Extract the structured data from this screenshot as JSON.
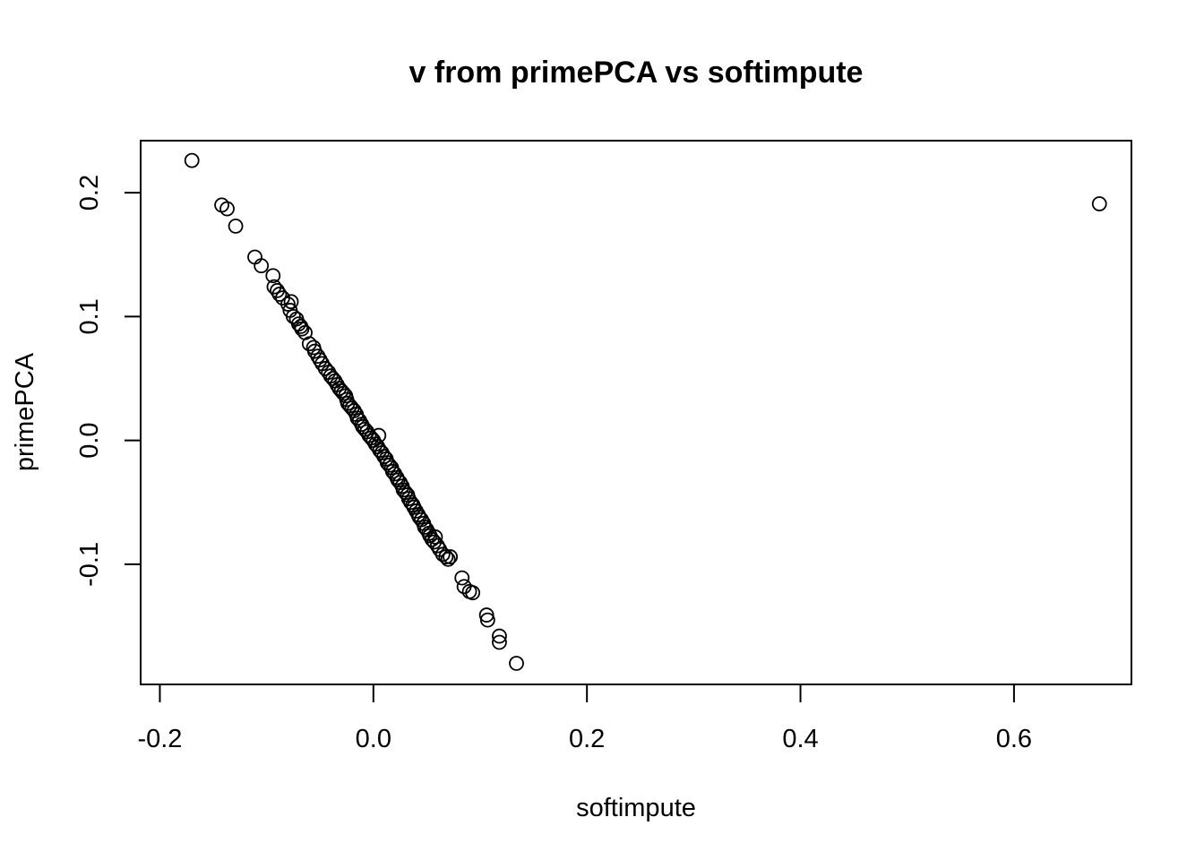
{
  "chart_data": {
    "type": "scatter",
    "title": "v from primePCA vs softimpute",
    "xlabel": "softimpute",
    "ylabel": "primePCA",
    "xlim": [
      -0.2,
      0.7
    ],
    "ylim": [
      -0.19,
      0.24
    ],
    "x_ticks": [
      -0.2,
      0.0,
      0.2,
      0.4,
      0.6
    ],
    "x_tick_labels": [
      "-0.2",
      "0.0",
      "0.2",
      "0.4",
      "0.6"
    ],
    "y_ticks": [
      -0.1,
      0.0,
      0.1,
      0.2
    ],
    "y_tick_labels": [
      "-0.1",
      "0.0",
      "0.1",
      "0.2"
    ],
    "marker": "open-circle",
    "grid": false,
    "legend": "none",
    "series": [
      {
        "x": [
          -0.17,
          -0.142,
          -0.137,
          -0.129,
          -0.111,
          -0.105,
          -0.094,
          -0.093,
          -0.09,
          -0.088,
          -0.085,
          -0.08,
          -0.077,
          -0.078,
          -0.075,
          -0.072,
          -0.07,
          -0.068,
          -0.067,
          -0.064,
          -0.06,
          -0.056,
          -0.055,
          -0.052,
          -0.05,
          -0.048,
          -0.045,
          -0.042,
          -0.04,
          -0.038,
          -0.036,
          -0.034,
          -0.032,
          -0.03,
          -0.028,
          -0.026,
          -0.025,
          -0.024,
          -0.022,
          -0.02,
          -0.018,
          -0.016,
          -0.015,
          -0.013,
          -0.011,
          -0.01,
          -0.008,
          -0.006,
          -0.004,
          -0.002,
          0.0,
          0.002,
          0.004,
          0.005,
          0.006,
          0.008,
          0.01,
          0.012,
          0.013,
          0.015,
          0.017,
          0.018,
          0.02,
          0.022,
          0.023,
          0.025,
          0.027,
          0.028,
          0.03,
          0.032,
          0.033,
          0.035,
          0.037,
          0.038,
          0.04,
          0.042,
          0.043,
          0.045,
          0.047,
          0.048,
          0.05,
          0.052,
          0.053,
          0.055,
          0.057,
          0.058,
          0.06,
          0.062,
          0.065,
          0.068,
          0.07,
          0.072,
          0.083,
          0.085,
          0.09,
          0.093,
          0.106,
          0.107,
          0.118,
          0.118,
          0.134,
          0.68
        ],
        "y": [
          0.226,
          0.19,
          0.187,
          0.173,
          0.148,
          0.141,
          0.133,
          0.124,
          0.121,
          0.118,
          0.115,
          0.11,
          0.112,
          0.105,
          0.1,
          0.098,
          0.094,
          0.092,
          0.09,
          0.087,
          0.078,
          0.075,
          0.072,
          0.068,
          0.065,
          0.062,
          0.058,
          0.055,
          0.052,
          0.05,
          0.048,
          0.045,
          0.042,
          0.04,
          0.038,
          0.036,
          0.033,
          0.03,
          0.028,
          0.026,
          0.024,
          0.021,
          0.018,
          0.016,
          0.013,
          0.011,
          0.009,
          0.007,
          0.004,
          0.002,
          0.0,
          -0.003,
          -0.005,
          0.004,
          -0.008,
          -0.01,
          -0.013,
          -0.015,
          -0.018,
          -0.02,
          -0.022,
          -0.025,
          -0.027,
          -0.03,
          -0.032,
          -0.034,
          -0.037,
          -0.04,
          -0.042,
          -0.044,
          -0.047,
          -0.05,
          -0.052,
          -0.054,
          -0.057,
          -0.06,
          -0.062,
          -0.064,
          -0.067,
          -0.07,
          -0.072,
          -0.075,
          -0.077,
          -0.08,
          -0.082,
          -0.078,
          -0.085,
          -0.088,
          -0.092,
          -0.094,
          -0.096,
          -0.094,
          -0.111,
          -0.118,
          -0.122,
          -0.123,
          -0.141,
          -0.145,
          -0.158,
          -0.163,
          -0.18,
          0.191
        ]
      }
    ]
  }
}
